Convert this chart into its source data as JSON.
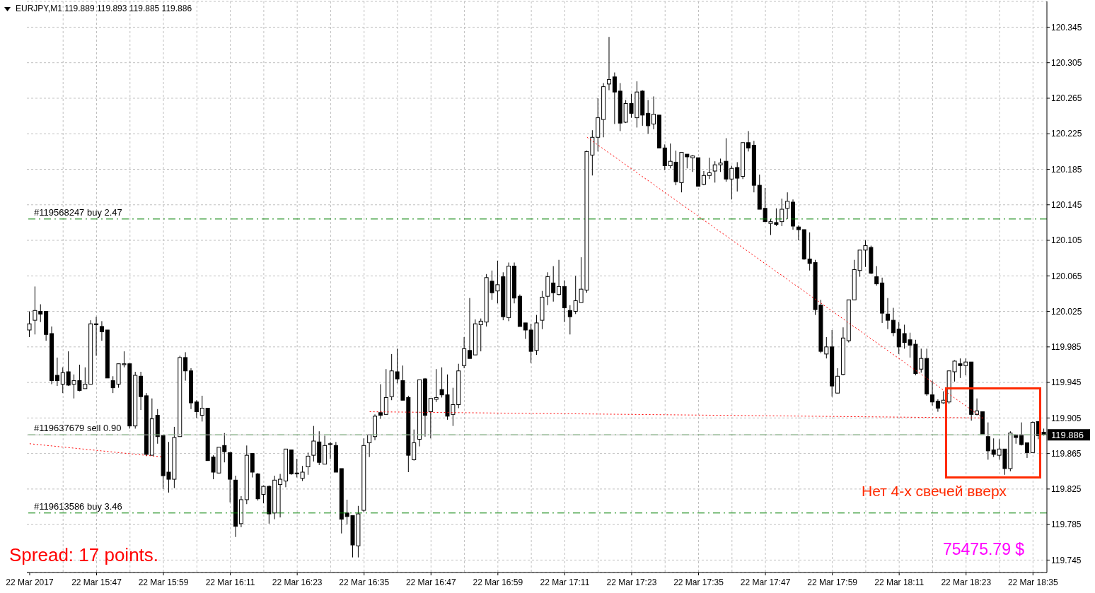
{
  "chart_data": {
    "type": "candlestick",
    "title": "EURJPY,M1 119.889 119.893 119.885 119.886",
    "color": "#000000",
    "categories": [
      "22 Mar 2017",
      null,
      null,
      null,
      null,
      null,
      null,
      null,
      null,
      null,
      null,
      null,
      "22 Mar 15:47",
      null,
      null,
      null,
      null,
      null,
      null,
      null,
      null,
      null,
      null,
      null,
      "22 Mar 15:59",
      null,
      null,
      null,
      null,
      null,
      null,
      null,
      null,
      null,
      null,
      null,
      "22 Mar 16:11",
      null,
      null,
      null,
      null,
      null,
      null,
      null,
      null,
      null,
      null,
      null,
      "22 Mar 16:23",
      null,
      null,
      null,
      null,
      null,
      null,
      null,
      null,
      null,
      null,
      null,
      "22 Mar 16:35",
      null,
      null,
      null,
      null,
      null,
      null,
      null,
      null,
      null,
      null,
      null,
      "22 Mar 16:47",
      null,
      null,
      null,
      null,
      null,
      null,
      null,
      null,
      null,
      null,
      null,
      "22 Mar 16:59",
      null,
      null,
      null,
      null,
      null,
      null,
      null,
      null,
      null,
      null,
      null,
      "22 Mar 17:11",
      null,
      null,
      null,
      null,
      null,
      null,
      null,
      null,
      null,
      null,
      null,
      "22 Mar 17:23",
      null,
      null,
      null,
      null,
      null,
      null,
      null,
      null,
      null,
      null,
      null,
      "22 Mar 17:35",
      null,
      null,
      null,
      null,
      null,
      null,
      null,
      null,
      null,
      null,
      null,
      "22 Mar 17:47",
      null,
      null,
      null,
      null,
      null,
      null,
      null,
      null,
      null,
      null,
      null,
      "22 Mar 17:59",
      null,
      null,
      null,
      null,
      null,
      null,
      null,
      null,
      null,
      null,
      null,
      "22 Mar 18:11",
      null,
      null,
      null,
      null,
      null,
      null,
      null,
      null,
      null,
      null,
      null,
      "22 Mar 18:23",
      null,
      null,
      null,
      null,
      null,
      null,
      null,
      null,
      null,
      null,
      null,
      "22 Mar 18:35",
      null,
      null
    ],
    "ohlc": [
      [
        120.004,
        120.025,
        119.996,
        120.011
      ],
      [
        120.015,
        120.053,
        119.999,
        120.026
      ],
      [
        120.025,
        120.033,
        120.013,
        120.022
      ],
      [
        120.025,
        120.025,
        119.992,
        119.999
      ],
      [
        120.0,
        120.008,
        119.943,
        119.947
      ],
      [
        119.953,
        119.973,
        119.941,
        119.947
      ],
      [
        119.943,
        119.962,
        119.933,
        119.956
      ],
      [
        119.957,
        119.98,
        119.941,
        119.942
      ],
      [
        119.943,
        119.954,
        119.927,
        119.947
      ],
      [
        119.947,
        119.965,
        119.935,
        119.936
      ],
      [
        119.938,
        119.962,
        119.938,
        119.943
      ],
      [
        119.943,
        120.015,
        119.943,
        120.011
      ],
      [
        120.011,
        120.019,
        119.975,
        120.01
      ],
      [
        120.008,
        120.014,
        119.992,
        120.002
      ],
      [
        120.004,
        120.004,
        119.95,
        119.95
      ],
      [
        119.947,
        119.952,
        119.933,
        119.939
      ],
      [
        119.943,
        119.966,
        119.939,
        119.966
      ],
      [
        119.965,
        119.98,
        119.962,
        119.966
      ],
      [
        119.966,
        119.966,
        119.893,
        119.896
      ],
      [
        119.896,
        119.957,
        119.893,
        119.953
      ],
      [
        119.952,
        119.957,
        119.914,
        119.929
      ],
      [
        119.93,
        119.933,
        119.862,
        119.864
      ],
      [
        119.863,
        119.927,
        119.863,
        119.904
      ],
      [
        119.908,
        119.915,
        119.876,
        119.884
      ],
      [
        119.885,
        119.885,
        119.825,
        119.84
      ],
      [
        119.844,
        119.878,
        119.821,
        119.836
      ],
      [
        119.836,
        119.895,
        119.826,
        119.883
      ],
      [
        119.884,
        119.975,
        119.884,
        119.973
      ],
      [
        119.973,
        119.979,
        119.947,
        119.958
      ],
      [
        119.958,
        119.961,
        119.915,
        119.922
      ],
      [
        119.923,
        119.925,
        119.905,
        119.912
      ],
      [
        119.908,
        119.93,
        119.901,
        119.916
      ],
      [
        119.916,
        119.916,
        119.857,
        119.857
      ],
      [
        119.861,
        119.863,
        119.836,
        119.844
      ],
      [
        119.843,
        119.872,
        119.843,
        119.872
      ],
      [
        119.874,
        119.888,
        119.855,
        119.867
      ],
      [
        119.866,
        119.866,
        119.81,
        119.836
      ],
      [
        119.835,
        119.84,
        119.771,
        119.783
      ],
      [
        119.786,
        119.817,
        119.782,
        119.813
      ],
      [
        119.813,
        119.874,
        119.808,
        119.863
      ],
      [
        119.865,
        119.865,
        119.838,
        119.844
      ],
      [
        119.842,
        119.843,
        119.812,
        119.814
      ],
      [
        119.819,
        119.829,
        119.809,
        119.828
      ],
      [
        119.828,
        119.829,
        119.786,
        119.797
      ],
      [
        119.798,
        119.84,
        119.791,
        119.835
      ],
      [
        119.83,
        119.842,
        119.793,
        119.836
      ],
      [
        119.834,
        119.87,
        119.827,
        119.87
      ],
      [
        119.869,
        119.869,
        119.841,
        119.842
      ],
      [
        119.843,
        119.859,
        119.838,
        119.842
      ],
      [
        119.837,
        119.851,
        119.834,
        119.844
      ],
      [
        119.85,
        119.866,
        119.841,
        119.862
      ],
      [
        119.863,
        119.896,
        119.856,
        119.879
      ],
      [
        119.878,
        119.89,
        119.852,
        119.855
      ],
      [
        119.853,
        119.885,
        119.853,
        119.874
      ],
      [
        119.876,
        119.878,
        119.859,
        119.876
      ],
      [
        119.874,
        119.878,
        119.844,
        119.844
      ],
      [
        119.848,
        119.848,
        119.775,
        119.791
      ],
      [
        119.798,
        119.813,
        119.785,
        119.794
      ],
      [
        119.795,
        119.795,
        119.748,
        119.762
      ],
      [
        119.761,
        119.806,
        119.748,
        119.797
      ],
      [
        119.801,
        119.882,
        119.799,
        119.874
      ],
      [
        119.877,
        119.886,
        119.861,
        119.886
      ],
      [
        119.884,
        119.909,
        119.88,
        119.907
      ],
      [
        119.911,
        119.943,
        119.904,
        119.908
      ],
      [
        119.909,
        119.96,
        119.909,
        119.928
      ],
      [
        119.929,
        119.977,
        119.925,
        119.958
      ],
      [
        119.957,
        119.983,
        119.944,
        119.949
      ],
      [
        119.947,
        119.964,
        119.925,
        119.925
      ],
      [
        119.928,
        119.93,
        119.844,
        119.863
      ],
      [
        119.858,
        119.892,
        119.857,
        119.877
      ],
      [
        119.881,
        119.948,
        119.873,
        119.948
      ],
      [
        119.949,
        119.95,
        119.884,
        119.908
      ],
      [
        119.912,
        119.927,
        119.882,
        119.927
      ],
      [
        119.926,
        119.96,
        119.923,
        119.928
      ],
      [
        119.937,
        119.962,
        119.928,
        119.931
      ],
      [
        119.931,
        119.954,
        119.903,
        119.907
      ],
      [
        119.909,
        119.939,
        119.896,
        119.92
      ],
      [
        119.92,
        119.966,
        119.916,
        119.958
      ],
      [
        119.964,
        119.996,
        119.961,
        119.983
      ],
      [
        119.981,
        120.04,
        119.972,
        119.972
      ],
      [
        119.976,
        120.016,
        119.976,
        120.011
      ],
      [
        120.01,
        120.017,
        119.98,
        120.014
      ],
      [
        120.013,
        120.067,
        120.008,
        120.063
      ],
      [
        120.059,
        120.071,
        120.038,
        120.046
      ],
      [
        120.048,
        120.082,
        120.034,
        120.055
      ],
      [
        120.064,
        120.069,
        120.015,
        120.019
      ],
      [
        120.018,
        120.08,
        120.014,
        120.076
      ],
      [
        120.076,
        120.08,
        120.034,
        120.04
      ],
      [
        120.042,
        120.044,
        120.008,
        120.008
      ],
      [
        120.012,
        120.012,
        119.994,
        120.004
      ],
      [
        120.004,
        120.011,
        119.967,
        119.98
      ],
      [
        119.981,
        120.021,
        119.976,
        120.012
      ],
      [
        120.015,
        120.048,
        120.005,
        120.041
      ],
      [
        120.042,
        120.069,
        120.032,
        120.064
      ],
      [
        120.057,
        120.076,
        120.036,
        120.046
      ],
      [
        120.044,
        120.083,
        120.043,
        120.053
      ],
      [
        120.053,
        120.06,
        120.013,
        120.029
      ],
      [
        120.026,
        120.032,
        119.999,
        120.019
      ],
      [
        120.025,
        120.065,
        120.022,
        120.037
      ],
      [
        120.035,
        120.086,
        120.035,
        120.05
      ],
      [
        120.049,
        120.206,
        120.046,
        120.205
      ],
      [
        120.201,
        120.229,
        120.178,
        120.221
      ],
      [
        120.221,
        120.265,
        120.205,
        120.243
      ],
      [
        120.241,
        120.282,
        120.221,
        120.278
      ],
      [
        120.281,
        120.334,
        120.274,
        120.286
      ],
      [
        120.289,
        120.294,
        120.236,
        120.272
      ],
      [
        120.273,
        120.282,
        120.228,
        120.237
      ],
      [
        120.238,
        120.263,
        120.237,
        120.259
      ],
      [
        120.259,
        120.27,
        120.243,
        120.248
      ],
      [
        120.243,
        120.284,
        120.232,
        120.272
      ],
      [
        120.273,
        120.274,
        120.234,
        120.246
      ],
      [
        120.248,
        120.263,
        120.225,
        120.234
      ],
      [
        120.236,
        120.267,
        120.23,
        120.247
      ],
      [
        120.246,
        120.246,
        120.209,
        120.209
      ],
      [
        120.209,
        120.213,
        120.184,
        120.189
      ],
      [
        120.189,
        120.214,
        120.186,
        120.194
      ],
      [
        120.193,
        120.206,
        120.167,
        120.171
      ],
      [
        120.17,
        120.204,
        120.159,
        120.204
      ],
      [
        120.202,
        120.202,
        120.186,
        120.199
      ],
      [
        120.198,
        120.201,
        120.182,
        120.2
      ],
      [
        120.198,
        120.198,
        120.166,
        120.166
      ],
      [
        120.168,
        120.183,
        120.167,
        120.178
      ],
      [
        120.178,
        120.198,
        120.174,
        120.181
      ],
      [
        120.183,
        120.194,
        120.17,
        120.19
      ],
      [
        120.19,
        120.197,
        120.182,
        120.192
      ],
      [
        120.194,
        120.22,
        120.171,
        120.174
      ],
      [
        120.174,
        120.189,
        120.151,
        120.186
      ],
      [
        120.187,
        120.193,
        120.16,
        120.175
      ],
      [
        120.177,
        120.215,
        120.174,
        120.215
      ],
      [
        120.215,
        120.228,
        120.205,
        120.209
      ],
      [
        120.212,
        120.217,
        120.159,
        120.167
      ],
      [
        120.167,
        120.179,
        120.14,
        120.14
      ],
      [
        120.141,
        120.164,
        120.126,
        120.126
      ],
      [
        120.124,
        120.129,
        120.111,
        120.126
      ],
      [
        120.125,
        120.141,
        120.121,
        120.123
      ],
      [
        120.126,
        120.152,
        120.121,
        120.14
      ],
      [
        120.141,
        120.159,
        120.129,
        120.149
      ],
      [
        120.148,
        120.151,
        120.117,
        120.121
      ],
      [
        120.12,
        120.122,
        120.105,
        120.117
      ],
      [
        120.117,
        120.117,
        120.083,
        120.084
      ],
      [
        120.084,
        120.114,
        120.071,
        120.079
      ],
      [
        120.08,
        120.083,
        120.021,
        120.027
      ],
      [
        120.032,
        120.038,
        119.978,
        119.98
      ],
      [
        119.977,
        119.996,
        119.972,
        119.985
      ],
      [
        119.985,
        120.004,
        119.929,
        119.941
      ],
      [
        119.933,
        119.961,
        119.933,
        119.952
      ],
      [
        119.954,
        120.007,
        119.953,
        119.995
      ],
      [
        119.992,
        120.038,
        119.99,
        120.038
      ],
      [
        120.038,
        120.083,
        120.038,
        120.072
      ],
      [
        120.071,
        120.094,
        120.064,
        120.094
      ],
      [
        120.094,
        120.105,
        120.075,
        120.099
      ],
      [
        120.097,
        120.099,
        120.067,
        120.068
      ],
      [
        120.064,
        120.076,
        120.054,
        120.056
      ],
      [
        120.057,
        120.063,
        120.012,
        120.023
      ],
      [
        120.022,
        120.04,
        120.005,
        120.015
      ],
      [
        120.015,
        120.029,
        119.997,
        120.001
      ],
      [
        120.005,
        120.013,
        119.977,
        119.985
      ],
      [
        120.0,
        120.01,
        119.983,
        119.99
      ],
      [
        119.993,
        120.001,
        119.973,
        119.987
      ],
      [
        119.988,
        119.993,
        119.953,
        119.955
      ],
      [
        119.96,
        119.983,
        119.956,
        119.972
      ],
      [
        119.972,
        119.983,
        119.93,
        119.932
      ],
      [
        119.931,
        119.947,
        119.919,
        119.923
      ],
      [
        119.924,
        119.926,
        119.912,
        119.916
      ],
      [
        119.922,
        119.935,
        119.921,
        119.925
      ],
      [
        119.923,
        119.958,
        119.921,
        119.958
      ],
      [
        119.957,
        119.97,
        119.946,
        119.969
      ],
      [
        119.966,
        119.972,
        119.95,
        119.964
      ],
      [
        119.964,
        119.972,
        119.953,
        119.968
      ],
      [
        119.968,
        119.968,
        119.902,
        119.909
      ],
      [
        119.909,
        119.927,
        119.908,
        119.913
      ],
      [
        119.912,
        119.912,
        119.887,
        119.887
      ],
      [
        119.884,
        119.9,
        119.858,
        119.868
      ],
      [
        119.869,
        119.882,
        119.861,
        119.864
      ],
      [
        119.863,
        119.881,
        119.858,
        119.87
      ],
      [
        119.87,
        119.87,
        119.841,
        119.848
      ],
      [
        119.848,
        119.89,
        119.845,
        119.888
      ],
      [
        119.886,
        119.886,
        119.876,
        119.883
      ],
      [
        119.886,
        119.9,
        119.874,
        119.875
      ],
      [
        119.877,
        119.877,
        119.86,
        119.866
      ],
      [
        119.866,
        119.901,
        119.866,
        119.9
      ],
      [
        119.901,
        119.901,
        119.881,
        119.885
      ],
      [
        119.889,
        119.893,
        119.885,
        119.886
      ]
    ],
    "series": [
      {
        "type": "line",
        "color": "#ff0000",
        "line_style": "dotted",
        "values": [
          119.876,
          null,
          null,
          null,
          null,
          null,
          null,
          null,
          null,
          null,
          null,
          null,
          null,
          null,
          null,
          null,
          null,
          null,
          null,
          null,
          null,
          null,
          null,
          null,
          119.861,
          null,
          null,
          null,
          null,
          null,
          null,
          null,
          null,
          null,
          null,
          null,
          null,
          null,
          null,
          null,
          null,
          null,
          null,
          null,
          null,
          null,
          null,
          null,
          null,
          null,
          null,
          null,
          null,
          null,
          null,
          null,
          null,
          null,
          null,
          null,
          null,
          null,
          null,
          null,
          null,
          null,
          null,
          null,
          null,
          null,
          null,
          null,
          null,
          null,
          null,
          null,
          null,
          null,
          null,
          null,
          null,
          null,
          null,
          null,
          null,
          null,
          null,
          null,
          null,
          null,
          null,
          null,
          null,
          null,
          null,
          null,
          null,
          null,
          null,
          null,
          null,
          null,
          null,
          null,
          null,
          null,
          null,
          null,
          null,
          null,
          null,
          null,
          null,
          null,
          null,
          null,
          null,
          null,
          null,
          null,
          null,
          null,
          null,
          null,
          null,
          null,
          null,
          null,
          null,
          null,
          null,
          null,
          null,
          null,
          null,
          null,
          null,
          null,
          null,
          null,
          null,
          null,
          null,
          null,
          null,
          null,
          null,
          null,
          null,
          null,
          null,
          null,
          null,
          null,
          null,
          null,
          null,
          null,
          null,
          null,
          null,
          null,
          null,
          null,
          null,
          null,
          null,
          null,
          null,
          null,
          null,
          null,
          null,
          null,
          null,
          null,
          null,
          null,
          null,
          null,
          null,
          null,
          null
        ]
      },
      {
        "type": "line",
        "color": "#ff0000",
        "line_style": "dotted",
        "values": [
          null,
          null,
          null,
          null,
          null,
          null,
          null,
          null,
          null,
          null,
          null,
          null,
          null,
          null,
          null,
          null,
          null,
          null,
          null,
          null,
          null,
          null,
          null,
          null,
          null,
          null,
          null,
          null,
          null,
          null,
          null,
          null,
          null,
          null,
          null,
          null,
          null,
          null,
          null,
          null,
          null,
          null,
          null,
          null,
          null,
          null,
          null,
          null,
          null,
          null,
          null,
          null,
          null,
          null,
          null,
          null,
          null,
          null,
          null,
          null,
          null,
          119.912,
          null,
          null,
          null,
          null,
          null,
          null,
          null,
          null,
          null,
          null,
          null,
          null,
          null,
          null,
          null,
          null,
          null,
          null,
          null,
          null,
          null,
          null,
          null,
          null,
          null,
          null,
          null,
          null,
          null,
          null,
          null,
          null,
          null,
          null,
          null,
          null,
          null,
          null,
          null,
          null,
          null,
          null,
          null,
          null,
          null,
          null,
          null,
          null,
          null,
          null,
          null,
          null,
          null,
          null,
          null,
          null,
          null,
          null,
          null,
          null,
          null,
          null,
          null,
          null,
          null,
          null,
          null,
          null,
          null,
          null,
          null,
          null,
          null,
          null,
          null,
          null,
          null,
          null,
          null,
          null,
          null,
          null,
          null,
          null,
          null,
          null,
          null,
          null,
          null,
          null,
          null,
          null,
          null,
          null,
          null,
          null,
          null,
          null,
          null,
          null,
          null,
          null,
          null,
          null,
          null,
          null,
          null,
          null,
          null,
          119.905,
          null,
          null,
          null,
          null,
          null,
          null,
          null,
          null,
          null,
          null,
          null
        ]
      },
      {
        "type": "line",
        "color": "#ff0000",
        "line_style": "dotted",
        "values": [
          null,
          null,
          null,
          null,
          null,
          null,
          null,
          null,
          null,
          null,
          null,
          null,
          null,
          null,
          null,
          null,
          null,
          null,
          null,
          null,
          null,
          null,
          null,
          null,
          null,
          null,
          null,
          null,
          null,
          null,
          null,
          null,
          null,
          null,
          null,
          null,
          null,
          null,
          null,
          null,
          null,
          null,
          null,
          null,
          null,
          null,
          null,
          null,
          null,
          null,
          null,
          null,
          null,
          null,
          null,
          null,
          null,
          null,
          null,
          null,
          null,
          null,
          null,
          null,
          null,
          null,
          null,
          null,
          null,
          null,
          null,
          null,
          null,
          null,
          null,
          null,
          null,
          null,
          null,
          null,
          null,
          null,
          null,
          null,
          null,
          null,
          null,
          null,
          null,
          null,
          null,
          null,
          null,
          null,
          null,
          null,
          null,
          null,
          null,
          null,
          120.221,
          null,
          null,
          null,
          null,
          null,
          null,
          null,
          null,
          null,
          null,
          null,
          null,
          null,
          null,
          null,
          null,
          null,
          null,
          null,
          null,
          null,
          null,
          null,
          null,
          null,
          null,
          null,
          null,
          null,
          null,
          null,
          null,
          null,
          null,
          null,
          null,
          null,
          null,
          null,
          null,
          null,
          null,
          null,
          null,
          null,
          null,
          null,
          null,
          null,
          null,
          null,
          null,
          null,
          null,
          null,
          null,
          null,
          null,
          null,
          null,
          null,
          null,
          null,
          null,
          null,
          null,
          null,
          null,
          null,
          null,
          119.905,
          null,
          null,
          null,
          null,
          null,
          null,
          null,
          null,
          null,
          null,
          null
        ]
      }
    ],
    "ylim": [
      119.731,
      120.374
    ],
    "yticks": [
      119.745,
      119.785,
      119.825,
      119.865,
      119.905,
      119.945,
      119.985,
      120.025,
      120.065,
      120.105,
      120.145,
      120.185,
      120.225,
      120.265,
      120.305,
      120.345
    ],
    "grid": true,
    "ref_lines": [
      {
        "axis": "y",
        "value": 120.129,
        "label": "#119568247 buy 2.47",
        "color": "#008000",
        "line_style": "dashed"
      },
      {
        "axis": "y",
        "value": 119.886,
        "label": "#119637679 sell 0.90",
        "color": "#008000",
        "line_style": "dashed"
      },
      {
        "axis": "y",
        "value": 119.798,
        "label": "#119613586 buy 3.46",
        "color": "#008000",
        "line_style": "dashed"
      },
      {
        "axis": "y",
        "value": 119.886,
        "label": "119.886",
        "color": "#c0c0c0",
        "line_style": "solid"
      }
    ],
    "annotations": [
      "Нет 4-х свечей вверх",
      "Spread: 17 points.",
      "75475.79 $"
    ]
  }
}
